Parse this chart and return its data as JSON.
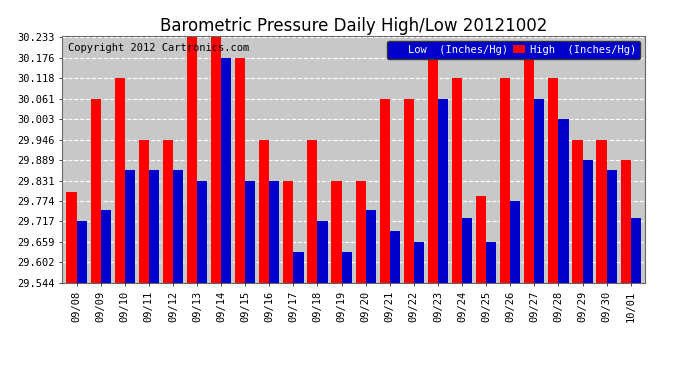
{
  "title": "Barometric Pressure Daily High/Low 20121002",
  "copyright": "Copyright 2012 Cartronics.com",
  "legend_low": "Low  (Inches/Hg)",
  "legend_high": "High  (Inches/Hg)",
  "dates": [
    "09/08",
    "09/09",
    "09/10",
    "09/11",
    "09/12",
    "09/13",
    "09/14",
    "09/15",
    "09/16",
    "09/17",
    "09/18",
    "09/19",
    "09/20",
    "09/21",
    "09/22",
    "09/23",
    "09/24",
    "09/25",
    "09/26",
    "09/27",
    "09/28",
    "09/29",
    "09/30",
    "10/01"
  ],
  "high": [
    29.8,
    30.061,
    30.118,
    29.946,
    29.946,
    30.233,
    30.233,
    30.176,
    29.946,
    29.831,
    29.946,
    29.831,
    29.831,
    30.061,
    30.061,
    30.176,
    30.118,
    29.789,
    30.118,
    30.176,
    30.118,
    29.946,
    29.946,
    29.889
  ],
  "low": [
    29.717,
    29.75,
    29.86,
    29.86,
    29.86,
    29.831,
    30.176,
    29.831,
    29.831,
    29.631,
    29.717,
    29.631,
    29.75,
    29.689,
    29.66,
    30.061,
    29.728,
    29.66,
    29.774,
    30.061,
    30.003,
    29.889,
    29.86,
    29.728
  ],
  "ylim_min": 29.544,
  "ylim_max": 30.233,
  "yticks": [
    29.544,
    29.602,
    29.659,
    29.717,
    29.774,
    29.831,
    29.889,
    29.946,
    30.003,
    30.061,
    30.118,
    30.176,
    30.233
  ],
  "bar_color_high": "#FF0000",
  "bar_color_low": "#0000CC",
  "bg_color": "#FFFFFF",
  "plot_bg_color": "#C8C8C8",
  "grid_color": "#FFFFFF",
  "title_fontsize": 12,
  "copyright_fontsize": 7.5
}
